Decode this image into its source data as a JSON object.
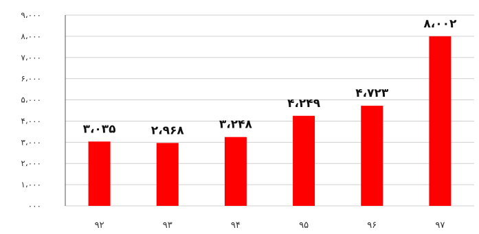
{
  "chart_data": {
    "type": "bar",
    "categories": [
      "۹۲",
      "۹۳",
      "۹۴",
      "۹۵",
      "۹۶",
      "۹۷"
    ],
    "values": [
      3035,
      2968,
      3248,
      4249,
      4723,
      8002
    ],
    "data_labels": [
      "۳،۰۳۵",
      "۲،۹۶۸",
      "۳،۲۴۸",
      "۴،۲۴۹",
      "۴،۷۲۳",
      "۸،۰۰۲"
    ],
    "y_ticks": [
      0,
      1000,
      2000,
      3000,
      4000,
      5000,
      6000,
      7000,
      8000,
      9000
    ],
    "y_tick_labels": [
      "۰۰۰",
      "۱،۰۰۰",
      "۲،۰۰۰",
      "۳،۰۰۰",
      "۴،۰۰۰",
      "۵،۰۰۰",
      "۶،۰۰۰",
      "۷،۰۰۰",
      "۸،۰۰۰",
      "۹،۰۰۰"
    ],
    "ylim": [
      0,
      9000
    ],
    "grid": true,
    "bar_color": "#ff0000",
    "title": "",
    "xlabel": "",
    "ylabel": ""
  }
}
